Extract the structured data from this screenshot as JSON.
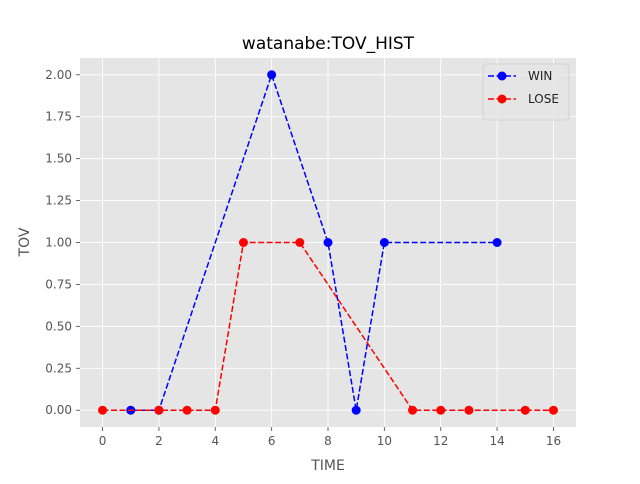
{
  "chart_data": {
    "type": "line",
    "title": "watanabe:TOV_HIST",
    "xlabel": "TIME",
    "ylabel": "TOV",
    "xlim": [
      -0.8,
      16.8
    ],
    "ylim": [
      -0.1,
      2.1
    ],
    "xticks": [
      0,
      2,
      4,
      6,
      8,
      10,
      12,
      14,
      16
    ],
    "xtick_labels": [
      "0",
      "2",
      "4",
      "6",
      "8",
      "10",
      "12",
      "14",
      "16"
    ],
    "yticks": [
      0.0,
      0.25,
      0.5,
      0.75,
      1.0,
      1.25,
      1.5,
      1.75,
      2.0
    ],
    "ytick_labels": [
      "0.00",
      "0.25",
      "0.50",
      "0.75",
      "1.00",
      "1.25",
      "1.50",
      "1.75",
      "2.00"
    ],
    "grid": true,
    "legend_position": "top-right",
    "series": [
      {
        "name": "WIN",
        "color": "#0000ff",
        "line_style": "dashed",
        "marker": "circle",
        "x": [
          1,
          2,
          6,
          8,
          9,
          10,
          14
        ],
        "y": [
          0,
          0,
          2,
          1,
          0,
          1,
          1
        ]
      },
      {
        "name": "LOSE",
        "color": "#ff0000",
        "line_style": "dashed",
        "marker": "circle",
        "x": [
          0,
          2,
          3,
          4,
          5,
          7,
          11,
          12,
          13,
          15,
          16
        ],
        "y": [
          0,
          0,
          0,
          0,
          1,
          1,
          0,
          0,
          0,
          0,
          0
        ]
      }
    ],
    "colors": {
      "plot_background": "#e5e5e5",
      "grid": "#ffffff"
    }
  }
}
